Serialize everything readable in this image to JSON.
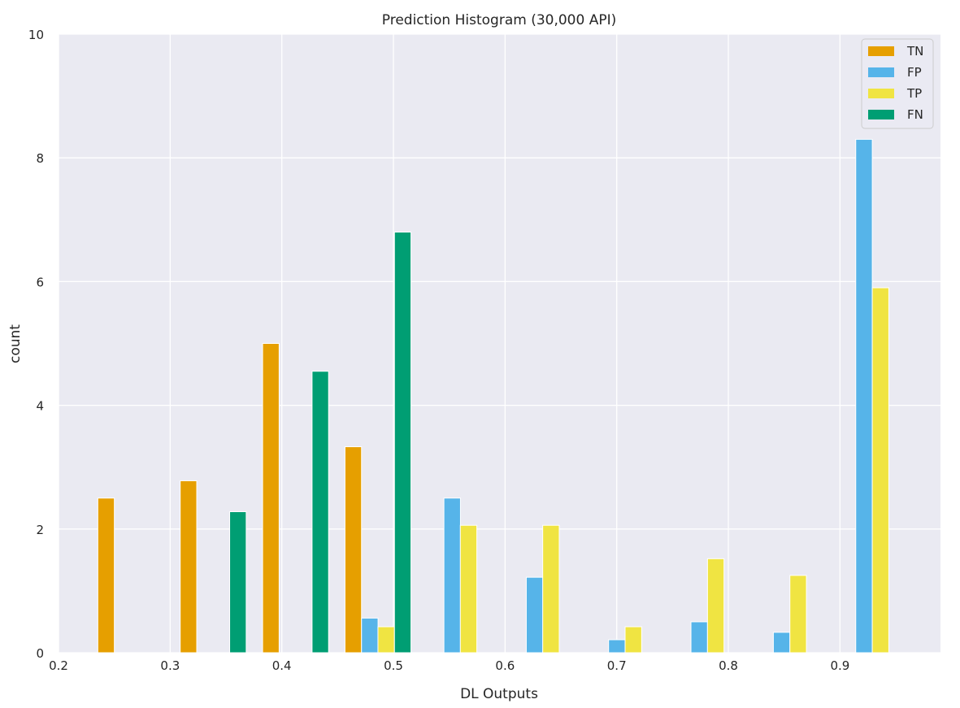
{
  "chart_data": {
    "type": "bar",
    "title": "Prediction Histogram (30,000 API)",
    "xlabel": "DL Outputs",
    "ylabel": "count",
    "xlim": [
      0.2,
      0.99
    ],
    "ylim": [
      0,
      10
    ],
    "xticks": [
      "0.2",
      "0.3",
      "0.4",
      "0.5",
      "0.6",
      "0.7",
      "0.8",
      "0.9"
    ],
    "yticks": [
      "0",
      "2",
      "4",
      "6",
      "8",
      "10"
    ],
    "grid": true,
    "legend_position": "top-right",
    "bar_width": 0.0148,
    "series": [
      {
        "name": "TN",
        "color": "#E69F00",
        "points": [
          {
            "x": 0.2426,
            "y": 2.5
          },
          {
            "x": 0.3164,
            "y": 2.78
          },
          {
            "x": 0.3902,
            "y": 5.0
          },
          {
            "x": 0.464,
            "y": 3.33
          }
        ]
      },
      {
        "name": "FP",
        "color": "#56B4E9",
        "points": [
          {
            "x": 0.4788,
            "y": 0.56
          },
          {
            "x": 0.5526,
            "y": 2.5
          },
          {
            "x": 0.6264,
            "y": 1.22
          },
          {
            "x": 0.7001,
            "y": 0.21
          },
          {
            "x": 0.7739,
            "y": 0.5
          },
          {
            "x": 0.8477,
            "y": 0.33
          },
          {
            "x": 0.9215,
            "y": 8.3
          }
        ]
      },
      {
        "name": "TP",
        "color": "#F0E442",
        "points": [
          {
            "x": 0.4935,
            "y": 0.42
          },
          {
            "x": 0.5673,
            "y": 2.06
          },
          {
            "x": 0.6411,
            "y": 2.06
          },
          {
            "x": 0.7149,
            "y": 0.42
          },
          {
            "x": 0.7887,
            "y": 1.52
          },
          {
            "x": 0.8625,
            "y": 1.25
          },
          {
            "x": 0.9363,
            "y": 5.9
          }
        ]
      },
      {
        "name": "FN",
        "color": "#009E73",
        "points": [
          {
            "x": 0.3607,
            "y": 2.28
          },
          {
            "x": 0.4345,
            "y": 4.55
          },
          {
            "x": 0.5083,
            "y": 6.8
          }
        ]
      }
    ]
  }
}
